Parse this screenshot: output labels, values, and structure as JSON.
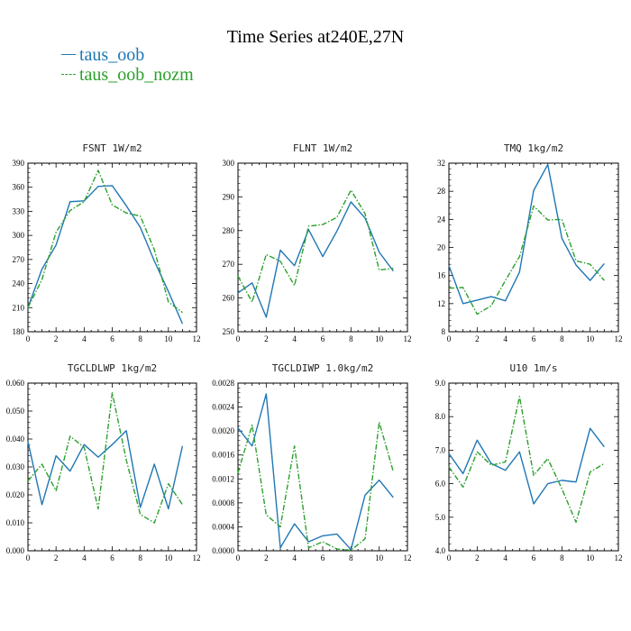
{
  "title": "Time Series at240E,27N",
  "legend": [
    {
      "label": "taus_oob",
      "color": "#1f77b4",
      "style": "solid"
    },
    {
      "label": "taus_oob_nozm",
      "color": "#2ca02c",
      "style": "dashdot"
    }
  ],
  "chart_data": [
    {
      "type": "line",
      "title": "FSNT  1W/m2",
      "x": [
        0,
        1,
        2,
        3,
        4,
        5,
        6,
        7,
        8,
        9,
        10,
        11
      ],
      "xlim": [
        0,
        12
      ],
      "xticks": [
        0,
        2,
        4,
        6,
        8,
        10,
        12
      ],
      "ylim": [
        180,
        390
      ],
      "yticks": [
        180,
        210,
        240,
        270,
        300,
        330,
        360,
        390
      ],
      "ytick_labels": [
        "180",
        "210",
        "240",
        "270",
        "300",
        "330",
        "360",
        "390"
      ],
      "series": [
        {
          "name": "taus_oob",
          "values": [
            210,
            258,
            288,
            342,
            343,
            361,
            362,
            337,
            310,
            268,
            230,
            190
          ]
        },
        {
          "name": "taus_oob_nozm",
          "values": [
            210,
            245,
            304,
            331,
            342,
            381,
            338,
            328,
            324,
            282,
            217,
            204
          ]
        }
      ]
    },
    {
      "type": "line",
      "title": "FLNT  1W/m2",
      "x": [
        0,
        1,
        2,
        3,
        4,
        5,
        6,
        7,
        8,
        9,
        10,
        11
      ],
      "xlim": [
        0,
        12
      ],
      "xticks": [
        0,
        2,
        4,
        6,
        8,
        10,
        12
      ],
      "ylim": [
        250,
        300
      ],
      "yticks": [
        250,
        260,
        270,
        280,
        290,
        300
      ],
      "ytick_labels": [
        "250",
        "260",
        "270",
        "280",
        "290",
        "300"
      ],
      "series": [
        {
          "name": "taus_oob",
          "values": [
            261.5,
            264.5,
            254.3,
            274.2,
            269.6,
            280.3,
            272.3,
            279.8,
            288.5,
            283.7,
            273.6,
            268.0
          ]
        },
        {
          "name": "taus_oob_nozm",
          "values": [
            266.5,
            258.8,
            272.9,
            270.9,
            263.7,
            281.3,
            281.8,
            283.9,
            292.0,
            285.0,
            268.3,
            268.8
          ]
        }
      ]
    },
    {
      "type": "line",
      "title": "TMQ  1kg/m2",
      "x": [
        0,
        1,
        2,
        3,
        4,
        5,
        6,
        7,
        8,
        9,
        10,
        11
      ],
      "xlim": [
        0,
        12
      ],
      "xticks": [
        0,
        2,
        4,
        6,
        8,
        10,
        12
      ],
      "ylim": [
        8,
        32
      ],
      "yticks": [
        8,
        12,
        16,
        20,
        24,
        28,
        32
      ],
      "ytick_labels": [
        "8",
        "12",
        "16",
        "20",
        "24",
        "28",
        "32"
      ],
      "series": [
        {
          "name": "taus_oob",
          "values": [
            17.4,
            12.0,
            12.5,
            13.0,
            12.4,
            16.5,
            28.1,
            31.8,
            21.3,
            17.5,
            15.3,
            17.7
          ]
        },
        {
          "name": "taus_oob_nozm",
          "values": [
            14.2,
            14.3,
            10.5,
            11.7,
            15.3,
            18.7,
            25.9,
            23.9,
            24.0,
            18.1,
            17.6,
            15.3
          ]
        }
      ]
    },
    {
      "type": "line",
      "title": "TGCLDLWP  1kg/m2",
      "x": [
        0,
        1,
        2,
        3,
        4,
        5,
        6,
        7,
        8,
        9,
        10,
        11
      ],
      "xlim": [
        0,
        12
      ],
      "xticks": [
        0,
        2,
        4,
        6,
        8,
        10,
        12
      ],
      "ylim": [
        0,
        0.06
      ],
      "yticks": [
        0,
        0.01,
        0.02,
        0.03,
        0.04,
        0.05,
        0.06
      ],
      "ytick_labels": [
        "0.000",
        "0.010",
        "0.020",
        "0.030",
        "0.040",
        "0.050",
        "0.060"
      ],
      "series": [
        {
          "name": "taus_oob",
          "values": [
            0.039,
            0.0165,
            0.034,
            0.0285,
            0.038,
            0.0335,
            0.038,
            0.043,
            0.0155,
            0.031,
            0.015,
            0.0375
          ]
        },
        {
          "name": "taus_oob_nozm",
          "values": [
            0.025,
            0.031,
            0.0215,
            0.041,
            0.037,
            0.015,
            0.0565,
            0.0325,
            0.013,
            0.01,
            0.024,
            0.0165
          ]
        }
      ]
    },
    {
      "type": "line",
      "title": "TGCLDIWP  1.0kg/m2",
      "x": [
        0,
        1,
        2,
        3,
        4,
        5,
        6,
        7,
        8,
        9,
        10,
        11
      ],
      "xlim": [
        0,
        12
      ],
      "xticks": [
        0,
        2,
        4,
        6,
        8,
        10,
        12
      ],
      "ylim": [
        0,
        0.0028
      ],
      "yticks": [
        0,
        0.0004,
        0.0008,
        0.0012,
        0.0016,
        0.002,
        0.0024,
        0.0028
      ],
      "ytick_labels": [
        "0.0000",
        "0.0004",
        "0.0008",
        "0.0012",
        "0.0016",
        "0.0020",
        "0.0024",
        "0.0028"
      ],
      "series": [
        {
          "name": "taus_oob",
          "values": [
            0.00205,
            0.00175,
            0.00262,
            5e-05,
            0.00045,
            0.00015,
            0.00025,
            0.00028,
            2e-05,
            0.00093,
            0.00118,
            0.00089
          ]
        },
        {
          "name": "taus_oob_nozm",
          "values": [
            0.0013,
            0.0021,
            0.0006,
            0.0004,
            0.00175,
            5e-05,
            0.00015,
            3e-05,
            1e-05,
            0.0002,
            0.00215,
            0.00132
          ]
        }
      ]
    },
    {
      "type": "line",
      "title": "U10  1m/s",
      "x": [
        0,
        1,
        2,
        3,
        4,
        5,
        6,
        7,
        8,
        9,
        10,
        11
      ],
      "xlim": [
        0,
        12
      ],
      "xticks": [
        0,
        2,
        4,
        6,
        8,
        10,
        12
      ],
      "ylim": [
        4,
        9
      ],
      "yticks": [
        4,
        5,
        6,
        7,
        8,
        9
      ],
      "ytick_labels": [
        "4.0",
        "5.0",
        "6.0",
        "7.0",
        "8.0",
        "9.0"
      ],
      "series": [
        {
          "name": "taus_oob",
          "values": [
            6.9,
            6.3,
            7.3,
            6.6,
            6.4,
            6.95,
            5.4,
            6.0,
            6.1,
            6.05,
            7.65,
            7.1
          ]
        },
        {
          "name": "taus_oob_nozm",
          "values": [
            6.5,
            5.9,
            6.95,
            6.55,
            6.65,
            8.6,
            6.25,
            6.75,
            5.85,
            4.85,
            6.35,
            6.6
          ]
        }
      ]
    }
  ]
}
